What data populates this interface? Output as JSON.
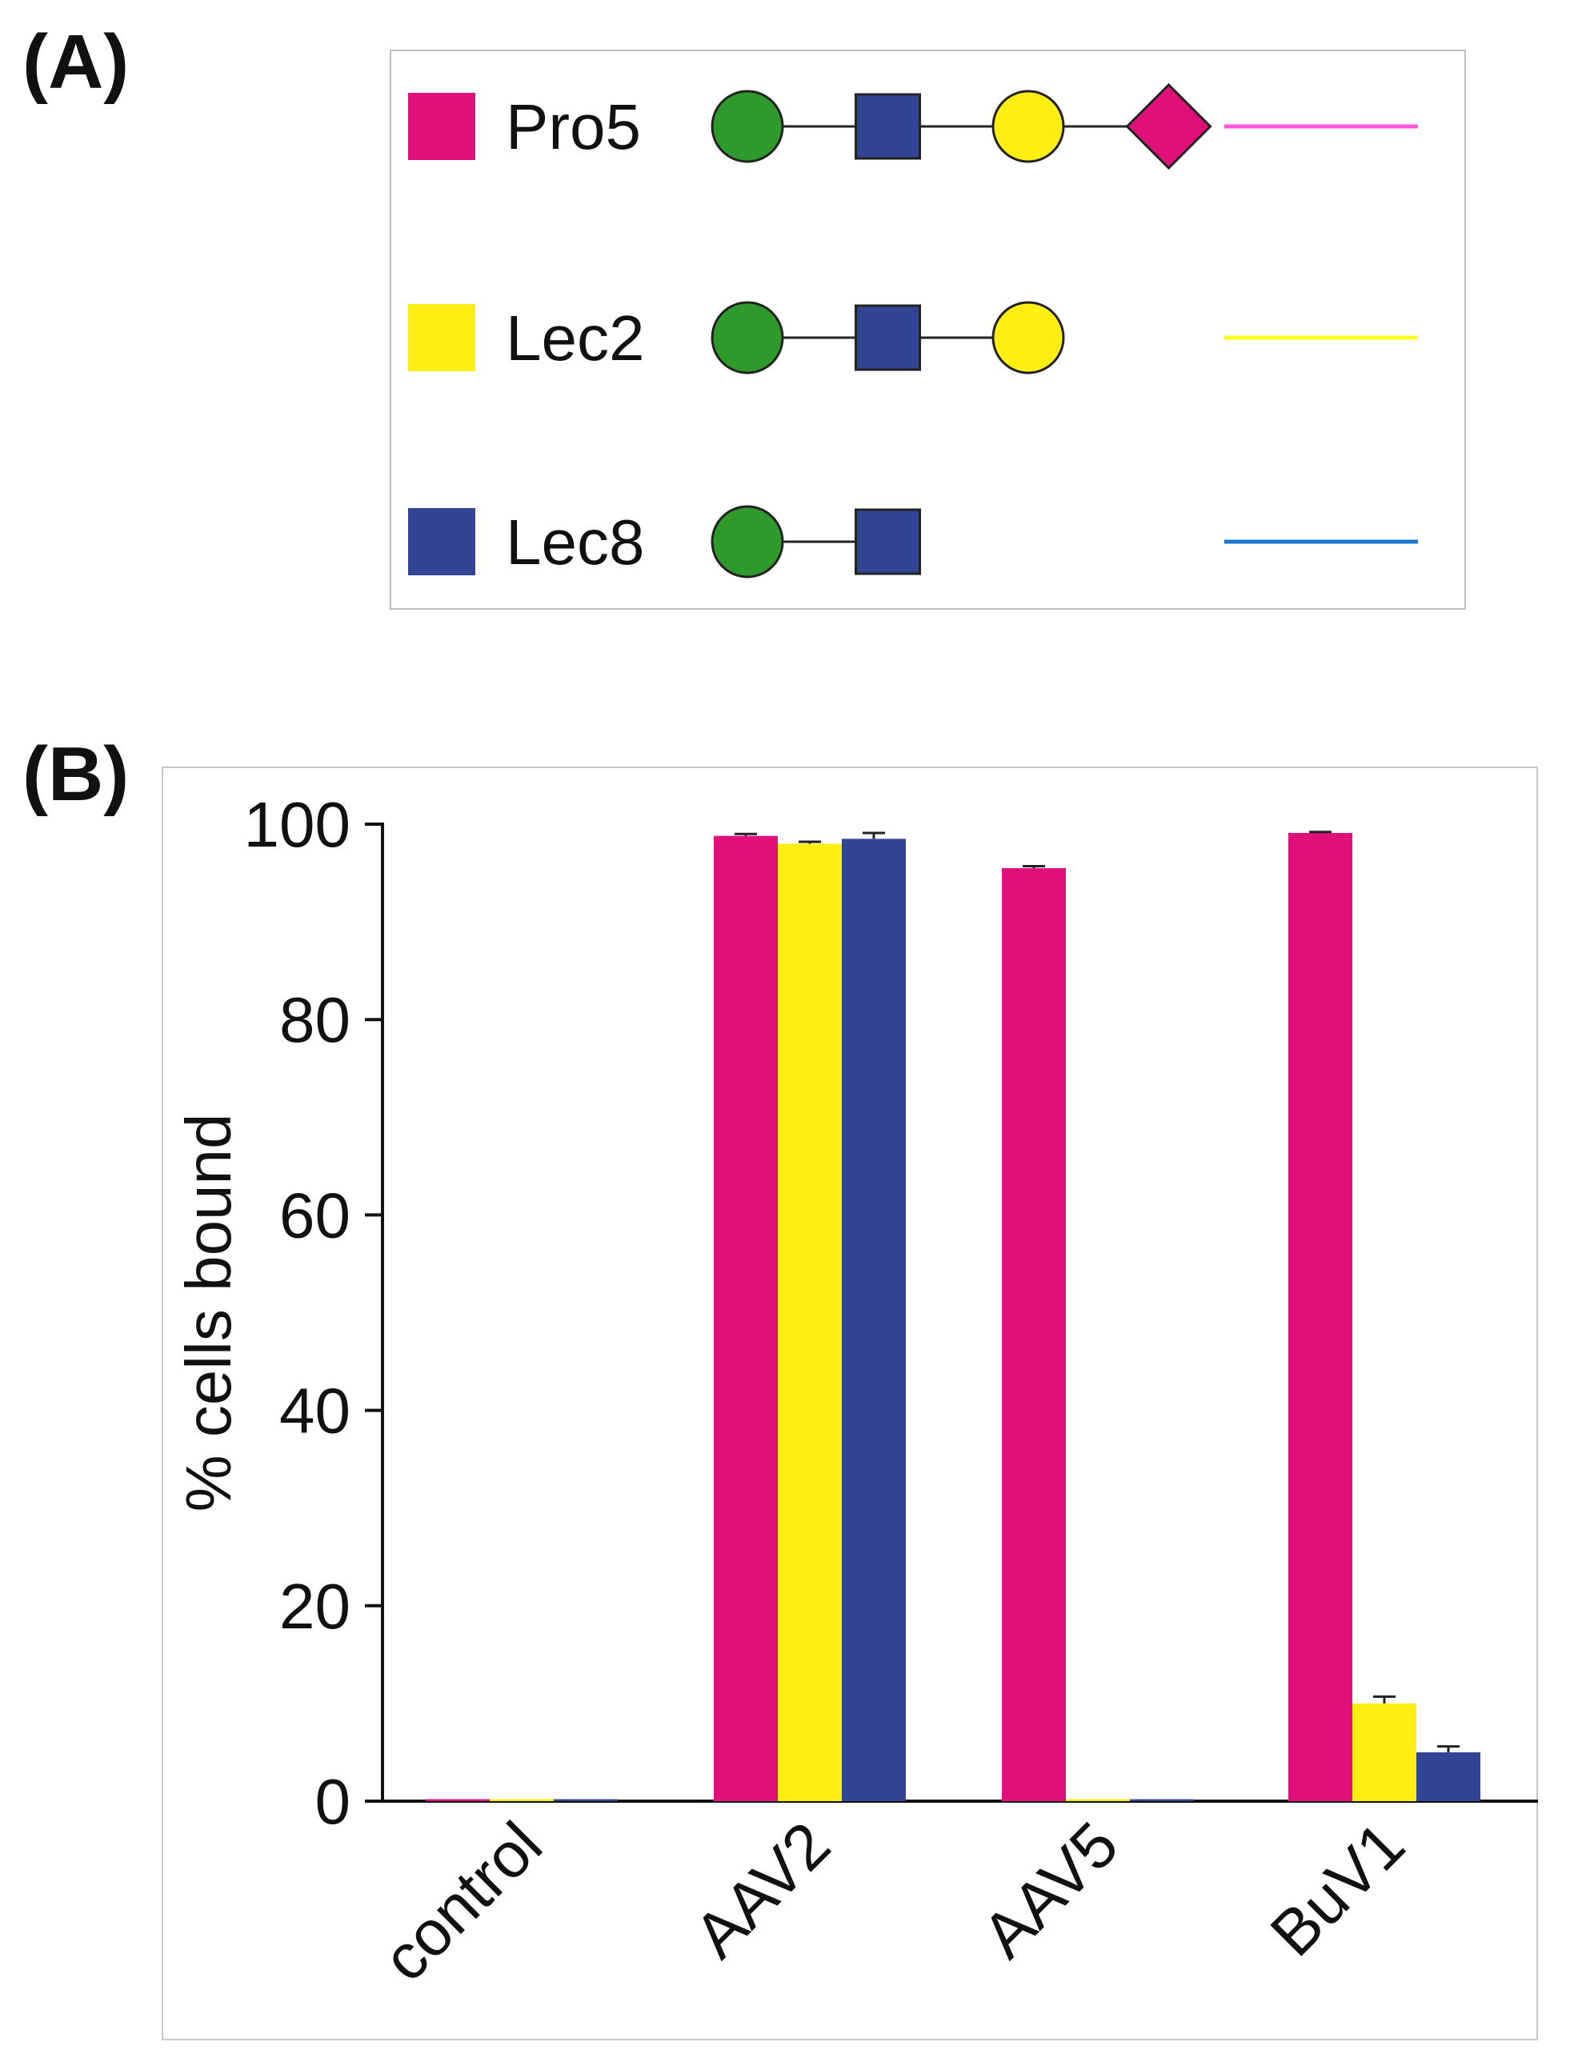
{
  "panels": {
    "a": "(A)",
    "b": "(B)"
  },
  "legend": [
    {
      "name": "Pro5",
      "color": "#e0107a",
      "line_color": "#ff55dd",
      "glycan": [
        "circle",
        "square",
        "circle",
        "diamond"
      ]
    },
    {
      "name": "Lec2",
      "color": "#ffee14",
      "line_color": "#ffff22",
      "glycan": [
        "circle",
        "square",
        "circle"
      ]
    },
    {
      "name": "Lec8",
      "color": "#324494",
      "line_color": "#1a77cc",
      "glycan": [
        "circle",
        "square"
      ]
    }
  ],
  "glycan_colors": {
    "glucose_circle": "#2e9a2a",
    "glcnac_square": "#324494",
    "galactose_circle": "#ffee14",
    "sialic_diamond": "#e0107a"
  },
  "chart_data": {
    "type": "bar",
    "categories": [
      "control",
      "AAV2",
      "AAV5",
      "BuV1"
    ],
    "series": [
      {
        "name": "Pro5",
        "color": "#e0107a",
        "values": [
          0.2,
          98.8,
          95.5,
          99.1
        ],
        "errors": [
          0,
          0.2,
          0.2,
          0.1
        ]
      },
      {
        "name": "Lec2",
        "color": "#ffee14",
        "values": [
          0.2,
          98.0,
          0.2,
          10.0
        ],
        "errors": [
          0,
          0.2,
          0,
          0.7
        ]
      },
      {
        "name": "Lec8",
        "color": "#324494",
        "values": [
          0.2,
          98.5,
          0.2,
          5.0
        ],
        "errors": [
          0,
          0.6,
          0,
          0.6
        ]
      }
    ],
    "ylabel": "% cells bound",
    "xlabel": "",
    "ylim": [
      0,
      100
    ],
    "yticks": [
      0,
      20,
      40,
      60,
      80,
      100
    ],
    "grid": false
  }
}
